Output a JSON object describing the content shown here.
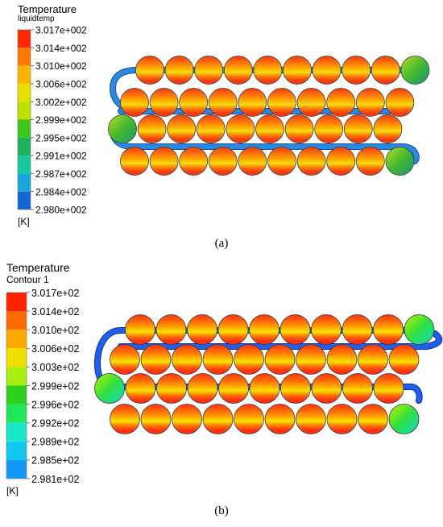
{
  "figure_a": {
    "legend": {
      "title": "Temperature",
      "subtitle": "liquidtemp",
      "labels": [
        "3.017e+002",
        "3.014e+002",
        "3.010e+002",
        "3.006e+002",
        "3.002e+002",
        "2.999e+002",
        "2.995e+002",
        "2.991e+002",
        "2.987e+002",
        "2.984e+002",
        "2.980e+002"
      ],
      "colors": [
        "#ff2a00",
        "#ff7a00",
        "#ffb400",
        "#e8e000",
        "#bfe000",
        "#3ec61e",
        "#1fb05a",
        "#18c8a0",
        "#18a8dc",
        "#1466d2",
        "#0a2bd0"
      ],
      "unit": "[K]"
    },
    "caption": "(a)"
  },
  "figure_b": {
    "legend": {
      "title": "Temperature",
      "subtitle": "Contour 1",
      "labels": [
        "3.017e+02",
        "3.014e+02",
        "3.010e+02",
        "3.006e+02",
        "3.003e+02",
        "2.999e+02",
        "2.996e+02",
        "2.992e+02",
        "2.989e+02",
        "2.985e+02",
        "2.981e+02"
      ],
      "colors": [
        "#ff2200",
        "#ff6a00",
        "#ffa800",
        "#f0e000",
        "#a8ee10",
        "#2ed020",
        "#1ee85a",
        "#18e8c8",
        "#12c8ec",
        "#1296f4",
        "#0a30f0"
      ],
      "unit": "[K]"
    },
    "caption": "(b)"
  }
}
